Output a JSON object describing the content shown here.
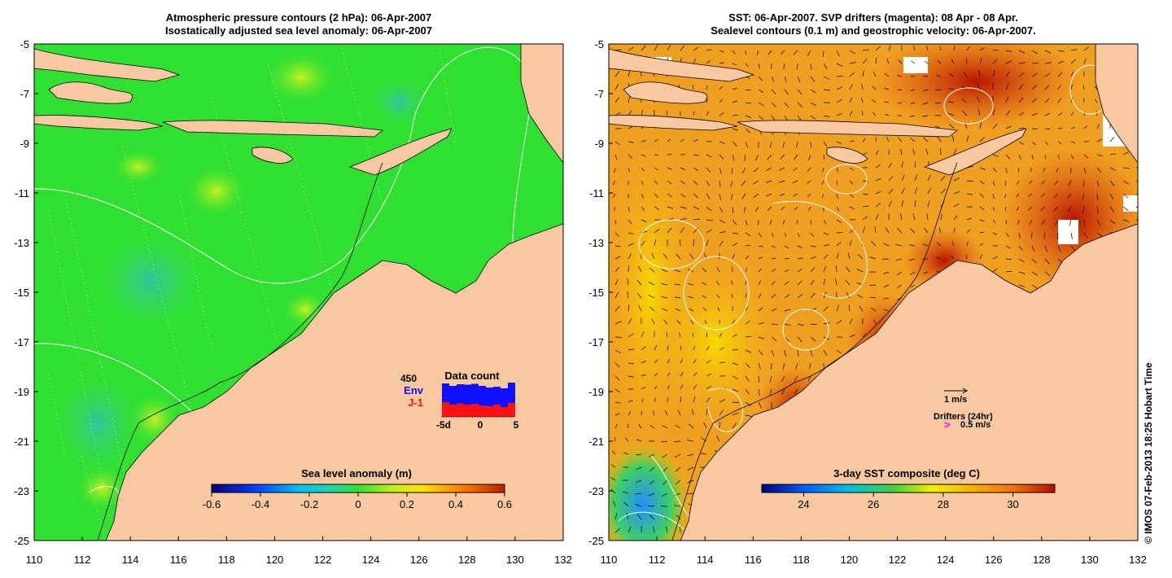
{
  "left_panel": {
    "title_line1": "Atmospheric pressure contours (2 hPa): 06-Apr-2007",
    "title_line2": "Isostatically adjusted sea level anomaly: 06-Apr-2007",
    "colorbar": {
      "label": "Sea level anomaly (m)",
      "ticks": [
        "-0.6",
        "-0.4",
        "-0.2",
        "0",
        "0.2",
        "0.4",
        "0.6"
      ],
      "range": [
        -0.6,
        0.6
      ]
    },
    "inset": {
      "title": "Data count",
      "top_value": "450",
      "env_label": "Env",
      "j1_label": "J-1",
      "env_color": "#1010ff",
      "j1_color": "#ff1010",
      "x_ticks": [
        "-5d",
        "0",
        "5"
      ],
      "env_counts": [
        410,
        380,
        400,
        395,
        405,
        380,
        360,
        370,
        350,
        420
      ],
      "j1_counts": [
        180,
        150,
        165,
        150,
        160,
        140,
        130,
        150,
        120,
        170
      ]
    }
  },
  "right_panel": {
    "title_line1": "SST: 06-Apr-2007. SVP drifters (magenta): 08 Apr - 08 Apr.",
    "title_line2": "Sealevel contours (0.1 m) and geostrophic velocity: 06-Apr-2007.",
    "colorbar": {
      "label": "3-day SST composite (deg C)",
      "ticks": [
        "24",
        "26",
        "28",
        "30"
      ],
      "range": [
        22.8,
        31.2
      ]
    },
    "legend": {
      "velocity_label": "1 m/s",
      "drifter_title": "Drifters (24hr)",
      "drifter_symbol": ">",
      "drifter_speed": "0.5 m/s",
      "drifter_color": "#ff00ff"
    }
  },
  "axes": {
    "lon_ticks": [
      "110",
      "112",
      "114",
      "116",
      "118",
      "120",
      "122",
      "124",
      "126",
      "128",
      "130",
      "132"
    ],
    "lat_ticks": [
      "-5",
      "-7",
      "-9",
      "-11",
      "-13",
      "-15",
      "-17",
      "-19",
      "-21",
      "-23",
      "-25"
    ],
    "lon_range": [
      110,
      132
    ],
    "lat_range": [
      -25,
      -5
    ]
  },
  "colors": {
    "land": "#f8c8a0",
    "sla_ocean": "#30e030",
    "sst_ocean": "#f0a020"
  },
  "credit": "© IMOS 07-Feb-2013 18:25 Hobart Time"
}
